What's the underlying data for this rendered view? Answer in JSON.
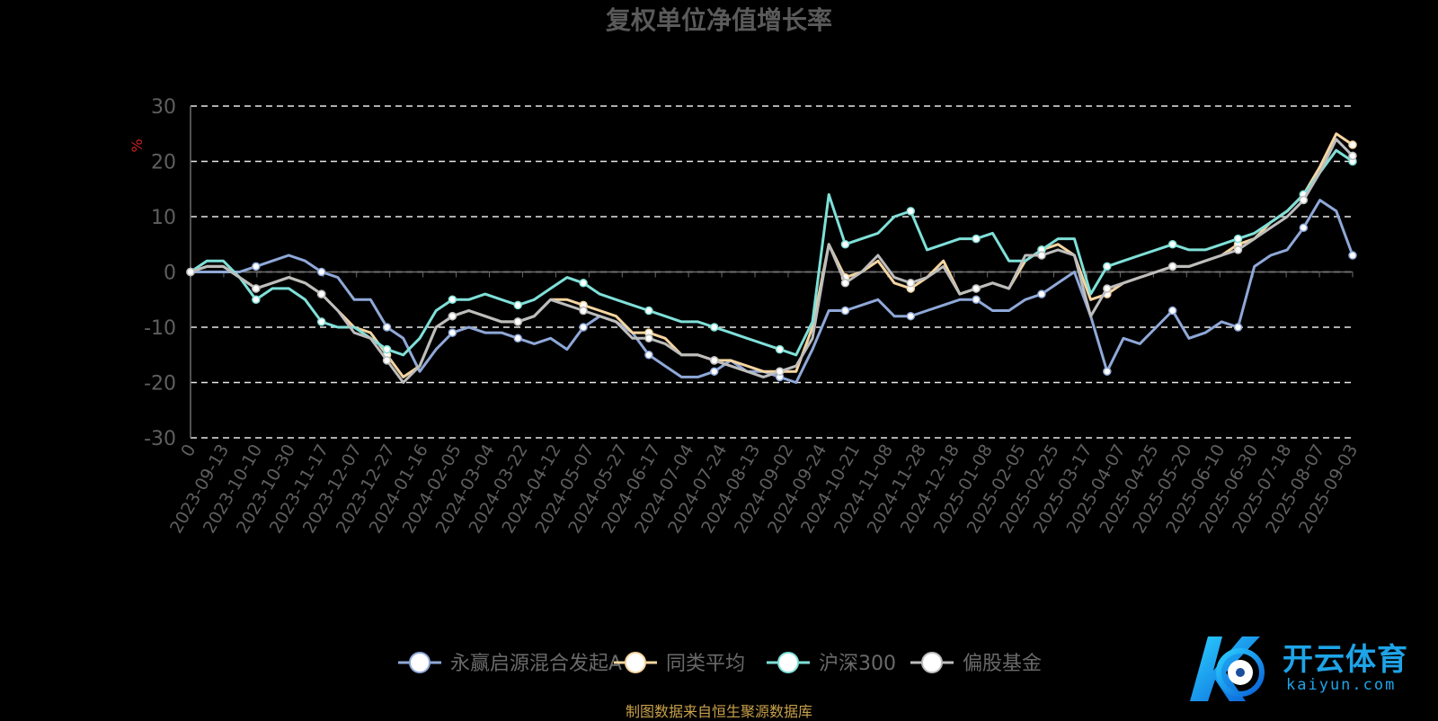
{
  "chart_data": {
    "type": "line",
    "title": "复权单位净值增长率",
    "ylabel": "%",
    "ylim": [
      -30,
      30
    ],
    "yticks": [
      30,
      20,
      10,
      0,
      -10,
      -20,
      -30
    ],
    "xticks": [
      "0",
      "2023-09-13",
      "2023-10-10",
      "2023-10-30",
      "2023-11-17",
      "2023-12-07",
      "2023-12-27",
      "2024-01-16",
      "2024-02-05",
      "2024-03-04",
      "2024-03-22",
      "2024-04-12",
      "2024-05-07",
      "2024-05-27",
      "2024-06-17",
      "2024-07-04",
      "2024-07-24",
      "2024-08-13",
      "2024-09-02",
      "2024-09-24",
      "2024-10-21",
      "2024-11-08",
      "2024-11-28",
      "2024-12-18",
      "2025-01-08",
      "2025-02-05",
      "2025-02-25",
      "2025-03-17",
      "2025-04-07",
      "2025-04-25",
      "2025-05-20",
      "2025-06-10",
      "2025-06-30",
      "2025-07-18",
      "2025-08-07",
      "2025-09-03"
    ],
    "grid": "horizontal dashed",
    "legend_position": "bottom",
    "series": [
      {
        "name": "永赢启源混合发起A",
        "color": "#8fa8d8",
        "values": [
          0,
          0,
          0,
          0,
          1,
          2,
          3,
          2,
          0,
          -1,
          -5,
          -5,
          -10,
          -12,
          -18,
          -14,
          -11,
          -10,
          -11,
          -11,
          -12,
          -13,
          -12,
          -14,
          -10,
          -8,
          -9,
          -11,
          -15,
          -17,
          -19,
          -19,
          -18,
          -16,
          -18,
          -18,
          -19,
          -20,
          -14,
          -7,
          -7,
          -6,
          -5,
          -8,
          -8,
          -7,
          -6,
          -5,
          -5,
          -7,
          -7,
          -5,
          -4,
          -2,
          0,
          -8,
          -18,
          -12,
          -13,
          -10,
          -7,
          -12,
          -11,
          -9,
          -10,
          1,
          3,
          4,
          8,
          13,
          11,
          3
        ]
      },
      {
        "name": "同类平均",
        "color": "#f5d5a0",
        "values": [
          0,
          1,
          1,
          -1,
          -3,
          -2,
          -1,
          -2,
          -4,
          -7,
          -10,
          -11,
          -15,
          -19,
          -17,
          -10,
          -8,
          -7,
          -8,
          -9,
          -9,
          -8,
          -5,
          -5,
          -6,
          -7,
          -8,
          -11,
          -11,
          -12,
          -15,
          -15,
          -16,
          -16,
          -17,
          -18,
          -18,
          -18,
          -10,
          5,
          -1,
          0,
          2,
          -2,
          -3,
          -1,
          2,
          -4,
          -3,
          -2,
          -3,
          2,
          4,
          5,
          3,
          -5,
          -4,
          -2,
          -1,
          0,
          1,
          1,
          2,
          3,
          5,
          6,
          9,
          11,
          14,
          19,
          25,
          23
        ]
      },
      {
        "name": "沪深300",
        "color": "#7fe0d8",
        "values": [
          0,
          2,
          2,
          -1,
          -5,
          -3,
          -3,
          -5,
          -9,
          -10,
          -10,
          -12,
          -14,
          -15,
          -12,
          -7,
          -5,
          -5,
          -4,
          -5,
          -6,
          -5,
          -3,
          -1,
          -2,
          -4,
          -5,
          -6,
          -7,
          -8,
          -9,
          -9,
          -10,
          -11,
          -12,
          -13,
          -14,
          -15,
          -9,
          14,
          5,
          6,
          7,
          10,
          11,
          4,
          5,
          6,
          6,
          7,
          2,
          2,
          4,
          6,
          6,
          -4,
          1,
          2,
          3,
          4,
          5,
          4,
          4,
          5,
          6,
          7,
          9,
          11,
          14,
          18,
          22,
          20
        ]
      },
      {
        "name": "偏股基金",
        "color": "#bdbdbd",
        "values": [
          0,
          1,
          1,
          -1,
          -3,
          -2,
          -1,
          -2,
          -4,
          -7,
          -11,
          -12,
          -16,
          -20,
          -17,
          -10,
          -8,
          -7,
          -8,
          -9,
          -9,
          -8,
          -5,
          -6,
          -7,
          -8,
          -9,
          -12,
          -12,
          -13,
          -15,
          -15,
          -16,
          -17,
          -18,
          -19,
          -18,
          -17,
          -12,
          5,
          -2,
          0,
          3,
          -1,
          -2,
          -1,
          1,
          -4,
          -3,
          -2,
          -3,
          3,
          3,
          4,
          3,
          -8,
          -3,
          -2,
          -1,
          0,
          1,
          1,
          2,
          3,
          4,
          6,
          8,
          10,
          13,
          18,
          24,
          21
        ]
      }
    ]
  },
  "source_note": "制图数据来自恒生聚源数据库",
  "watermark": {
    "brand": "开云体育",
    "sub": "kaiyun.com"
  }
}
